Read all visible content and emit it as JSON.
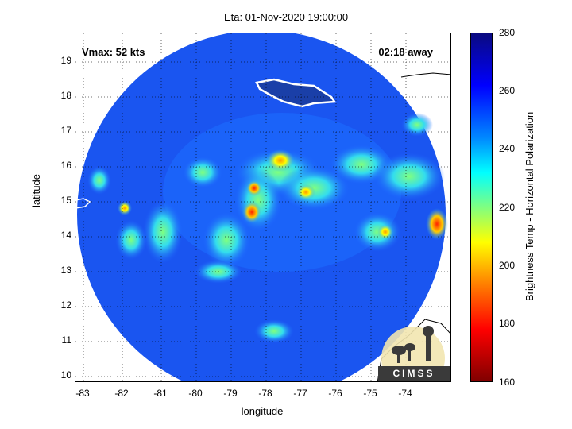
{
  "title": "Eta: 01-Nov-2020 19:00:00",
  "vmax_label": "Vmax: 52 kts",
  "time_away": "02:18 away",
  "axes": {
    "xlabel": "longitude",
    "ylabel": "latitude",
    "x_ticks": [
      "-83",
      "-82",
      "-81",
      "-80",
      "-79",
      "-78",
      "-77",
      "-76",
      "-75",
      "-74"
    ],
    "y_ticks": [
      "19",
      "18",
      "17",
      "16",
      "15",
      "14",
      "13",
      "12",
      "11",
      "10"
    ],
    "xlim": [
      -83.3,
      -72.9
    ],
    "ylim": [
      9.8,
      19.8
    ]
  },
  "colorbar": {
    "label": "Brightness Temp - Horizontal Polarization",
    "ticks": [
      "280",
      "260",
      "240",
      "220",
      "200",
      "180",
      "160"
    ],
    "range": [
      160,
      280
    ]
  },
  "logo_text": "CIMSS"
}
